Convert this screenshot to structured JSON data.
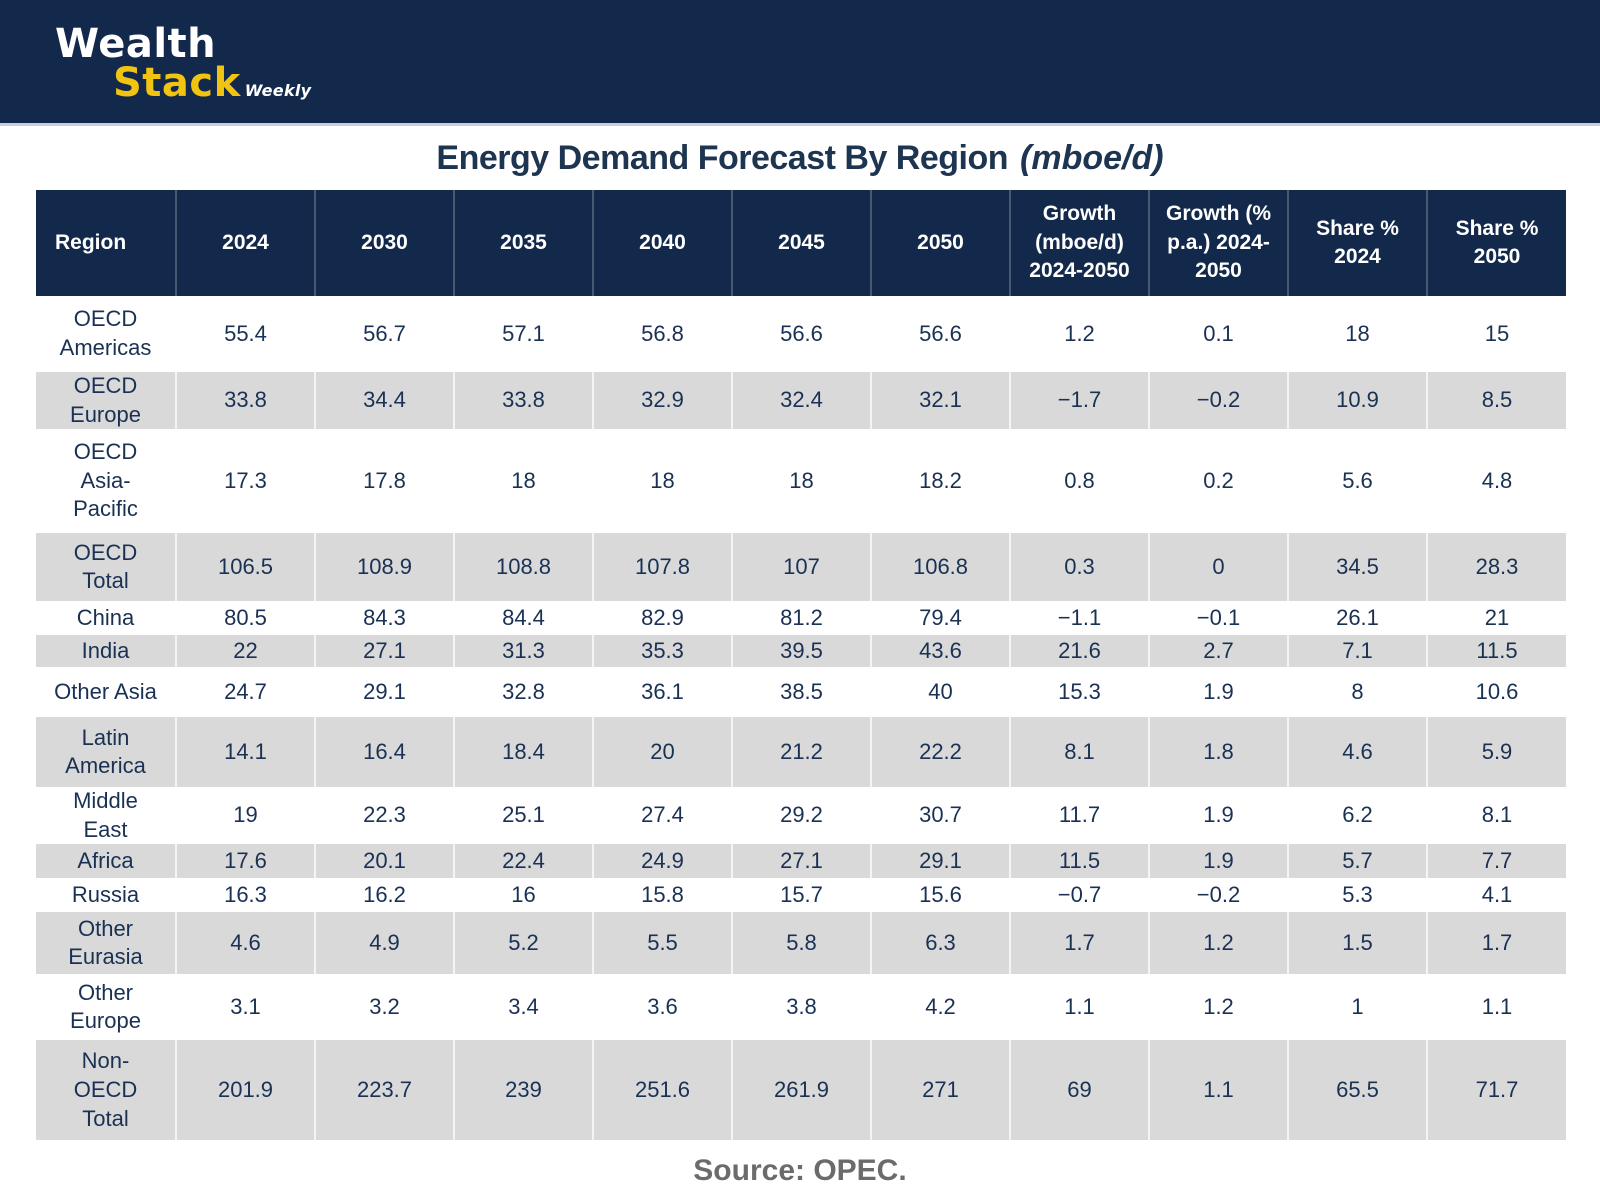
{
  "logo": {
    "word1": "Wealth",
    "word2": "Stack",
    "suffix": "Weekly"
  },
  "title": {
    "main": "Energy Demand Forecast By Region",
    "unit": "(mboe/d)"
  },
  "source": "Source: OPEC.",
  "colors": {
    "navy": "#13294b",
    "logo_yellow": "#f2c412",
    "row_stripe": "#d9d9d9",
    "body_text": "#1a3154",
    "source_gray": "#6b6b6b"
  },
  "chart_data": {
    "type": "table",
    "title": "Energy Demand Forecast By Region (mboe/d)",
    "source": "Source: OPEC.",
    "columns": [
      "Region",
      "2024",
      "2030",
      "2035",
      "2040",
      "2045",
      "2050",
      "Growth (mboe/d) 2024-2050",
      "Growth (% p.a.) 2024-2050",
      "Share % 2024",
      "Share % 2050"
    ],
    "rows": [
      {
        "region": "OECD Americas",
        "values": [
          "55.4",
          "56.7",
          "57.1",
          "56.8",
          "56.6",
          "56.6",
          "1.2",
          "0.1",
          "18",
          "15"
        ]
      },
      {
        "region": "OECD Europe",
        "values": [
          "33.8",
          "34.4",
          "33.8",
          "32.9",
          "32.4",
          "32.1",
          "−1.7",
          "−0.2",
          "10.9",
          "8.5"
        ]
      },
      {
        "region": "OECD Asia-Pacific",
        "values": [
          "17.3",
          "17.8",
          "18",
          "18",
          "18",
          "18.2",
          "0.8",
          "0.2",
          "5.6",
          "4.8"
        ]
      },
      {
        "region": "OECD Total",
        "values": [
          "106.5",
          "108.9",
          "108.8",
          "107.8",
          "107",
          "106.8",
          "0.3",
          "0",
          "34.5",
          "28.3"
        ]
      },
      {
        "region": "China",
        "values": [
          "80.5",
          "84.3",
          "84.4",
          "82.9",
          "81.2",
          "79.4",
          "−1.1",
          "−0.1",
          "26.1",
          "21"
        ]
      },
      {
        "region": "India",
        "values": [
          "22",
          "27.1",
          "31.3",
          "35.3",
          "39.5",
          "43.6",
          "21.6",
          "2.7",
          "7.1",
          "11.5"
        ]
      },
      {
        "region": "Other Asia",
        "values": [
          "24.7",
          "29.1",
          "32.8",
          "36.1",
          "38.5",
          "40",
          "15.3",
          "1.9",
          "8",
          "10.6"
        ]
      },
      {
        "region": "Latin America",
        "values": [
          "14.1",
          "16.4",
          "18.4",
          "20",
          "21.2",
          "22.2",
          "8.1",
          "1.8",
          "4.6",
          "5.9"
        ]
      },
      {
        "region": "Middle East",
        "values": [
          "19",
          "22.3",
          "25.1",
          "27.4",
          "29.2",
          "30.7",
          "11.7",
          "1.9",
          "6.2",
          "8.1"
        ]
      },
      {
        "region": "Africa",
        "values": [
          "17.6",
          "20.1",
          "22.4",
          "24.9",
          "27.1",
          "29.1",
          "11.5",
          "1.9",
          "5.7",
          "7.7"
        ]
      },
      {
        "region": "Russia",
        "values": [
          "16.3",
          "16.2",
          "16",
          "15.8",
          "15.7",
          "15.6",
          "−0.7",
          "−0.2",
          "5.3",
          "4.1"
        ]
      },
      {
        "region": "Other Eurasia",
        "values": [
          "4.6",
          "4.9",
          "5.2",
          "5.5",
          "5.8",
          "6.3",
          "1.7",
          "1.2",
          "1.5",
          "1.7"
        ]
      },
      {
        "region": "Other Europe",
        "values": [
          "3.1",
          "3.2",
          "3.4",
          "3.6",
          "3.8",
          "4.2",
          "1.1",
          "1.2",
          "1",
          "1.1"
        ]
      },
      {
        "region": "Non-OECD Total",
        "values": [
          "201.9",
          "223.7",
          "239",
          "251.6",
          "261.9",
          "271",
          "69",
          "1.1",
          "65.5",
          "71.7"
        ]
      }
    ]
  }
}
